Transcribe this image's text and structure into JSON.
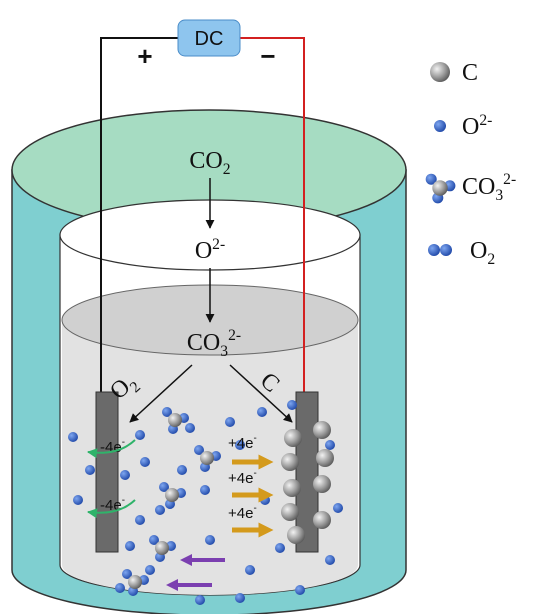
{
  "power": {
    "label": "DC",
    "positive": "+",
    "negative": "−"
  },
  "flow": {
    "co2": {
      "base": "CO",
      "sub": "2"
    },
    "oxide": {
      "base": "O",
      "sup": "2-"
    },
    "carbonate": {
      "base": "CO",
      "sub": "3",
      "sup": "2-"
    }
  },
  "anode": {
    "label": {
      "base": "O",
      "sub": "2"
    },
    "electrons": [
      {
        "base": "-4e",
        "sup": "-"
      },
      {
        "base": "-4e",
        "sup": "-"
      }
    ]
  },
  "cathode": {
    "label": "C",
    "electrons": [
      {
        "base": "+4e",
        "sup": "-"
      },
      {
        "base": "+4e",
        "sup": "-"
      },
      {
        "base": "+4e",
        "sup": "-"
      }
    ]
  },
  "legend": [
    {
      "base": "C"
    },
    {
      "base": "O",
      "sup": "2-"
    },
    {
      "base": "CO",
      "sub": "3",
      "sup": "2-"
    },
    {
      "base": "O",
      "sub": "2"
    }
  ]
}
